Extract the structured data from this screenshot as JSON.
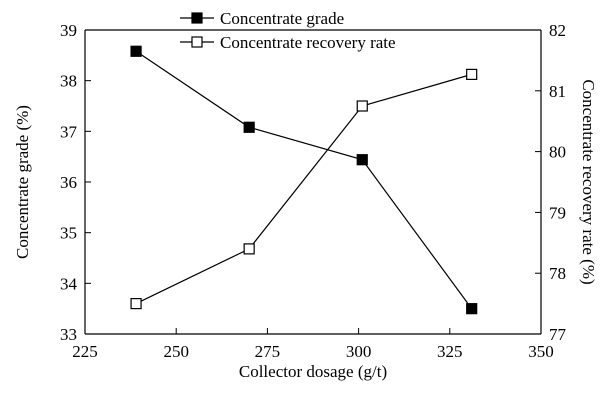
{
  "chart_data": {
    "type": "line",
    "x": [
      239,
      270,
      301,
      331
    ],
    "xlabel": "Collector dosage (g/t)",
    "xlim": [
      225,
      350
    ],
    "xticks": [
      225,
      250,
      275,
      300,
      325,
      350
    ],
    "y_left": {
      "label": "Concentrate grade (%)",
      "lim": [
        33,
        39
      ],
      "ticks": [
        33,
        34,
        35,
        36,
        37,
        38,
        39
      ]
    },
    "y_right": {
      "label": "Concentrate recovery rate (%)",
      "lim": [
        77,
        82
      ],
      "ticks": [
        77,
        78,
        79,
        80,
        81,
        82
      ]
    },
    "series": [
      {
        "name": "Concentrate grade",
        "axis": "left",
        "marker": "filled-square",
        "values": [
          38.58,
          37.08,
          36.44,
          33.5
        ]
      },
      {
        "name": "Concentrate recovery rate",
        "axis": "right",
        "marker": "open-square",
        "values": [
          77.5,
          78.4,
          80.75,
          81.27
        ]
      }
    ],
    "legend": {
      "placement": "top-center",
      "items": [
        "Concentrate grade",
        "Concentrate recovery rate"
      ]
    },
    "grid": false,
    "colors": {
      "line": "#000000",
      "marker_fill": "#000000",
      "marker_open_fill": "#ffffff"
    }
  }
}
